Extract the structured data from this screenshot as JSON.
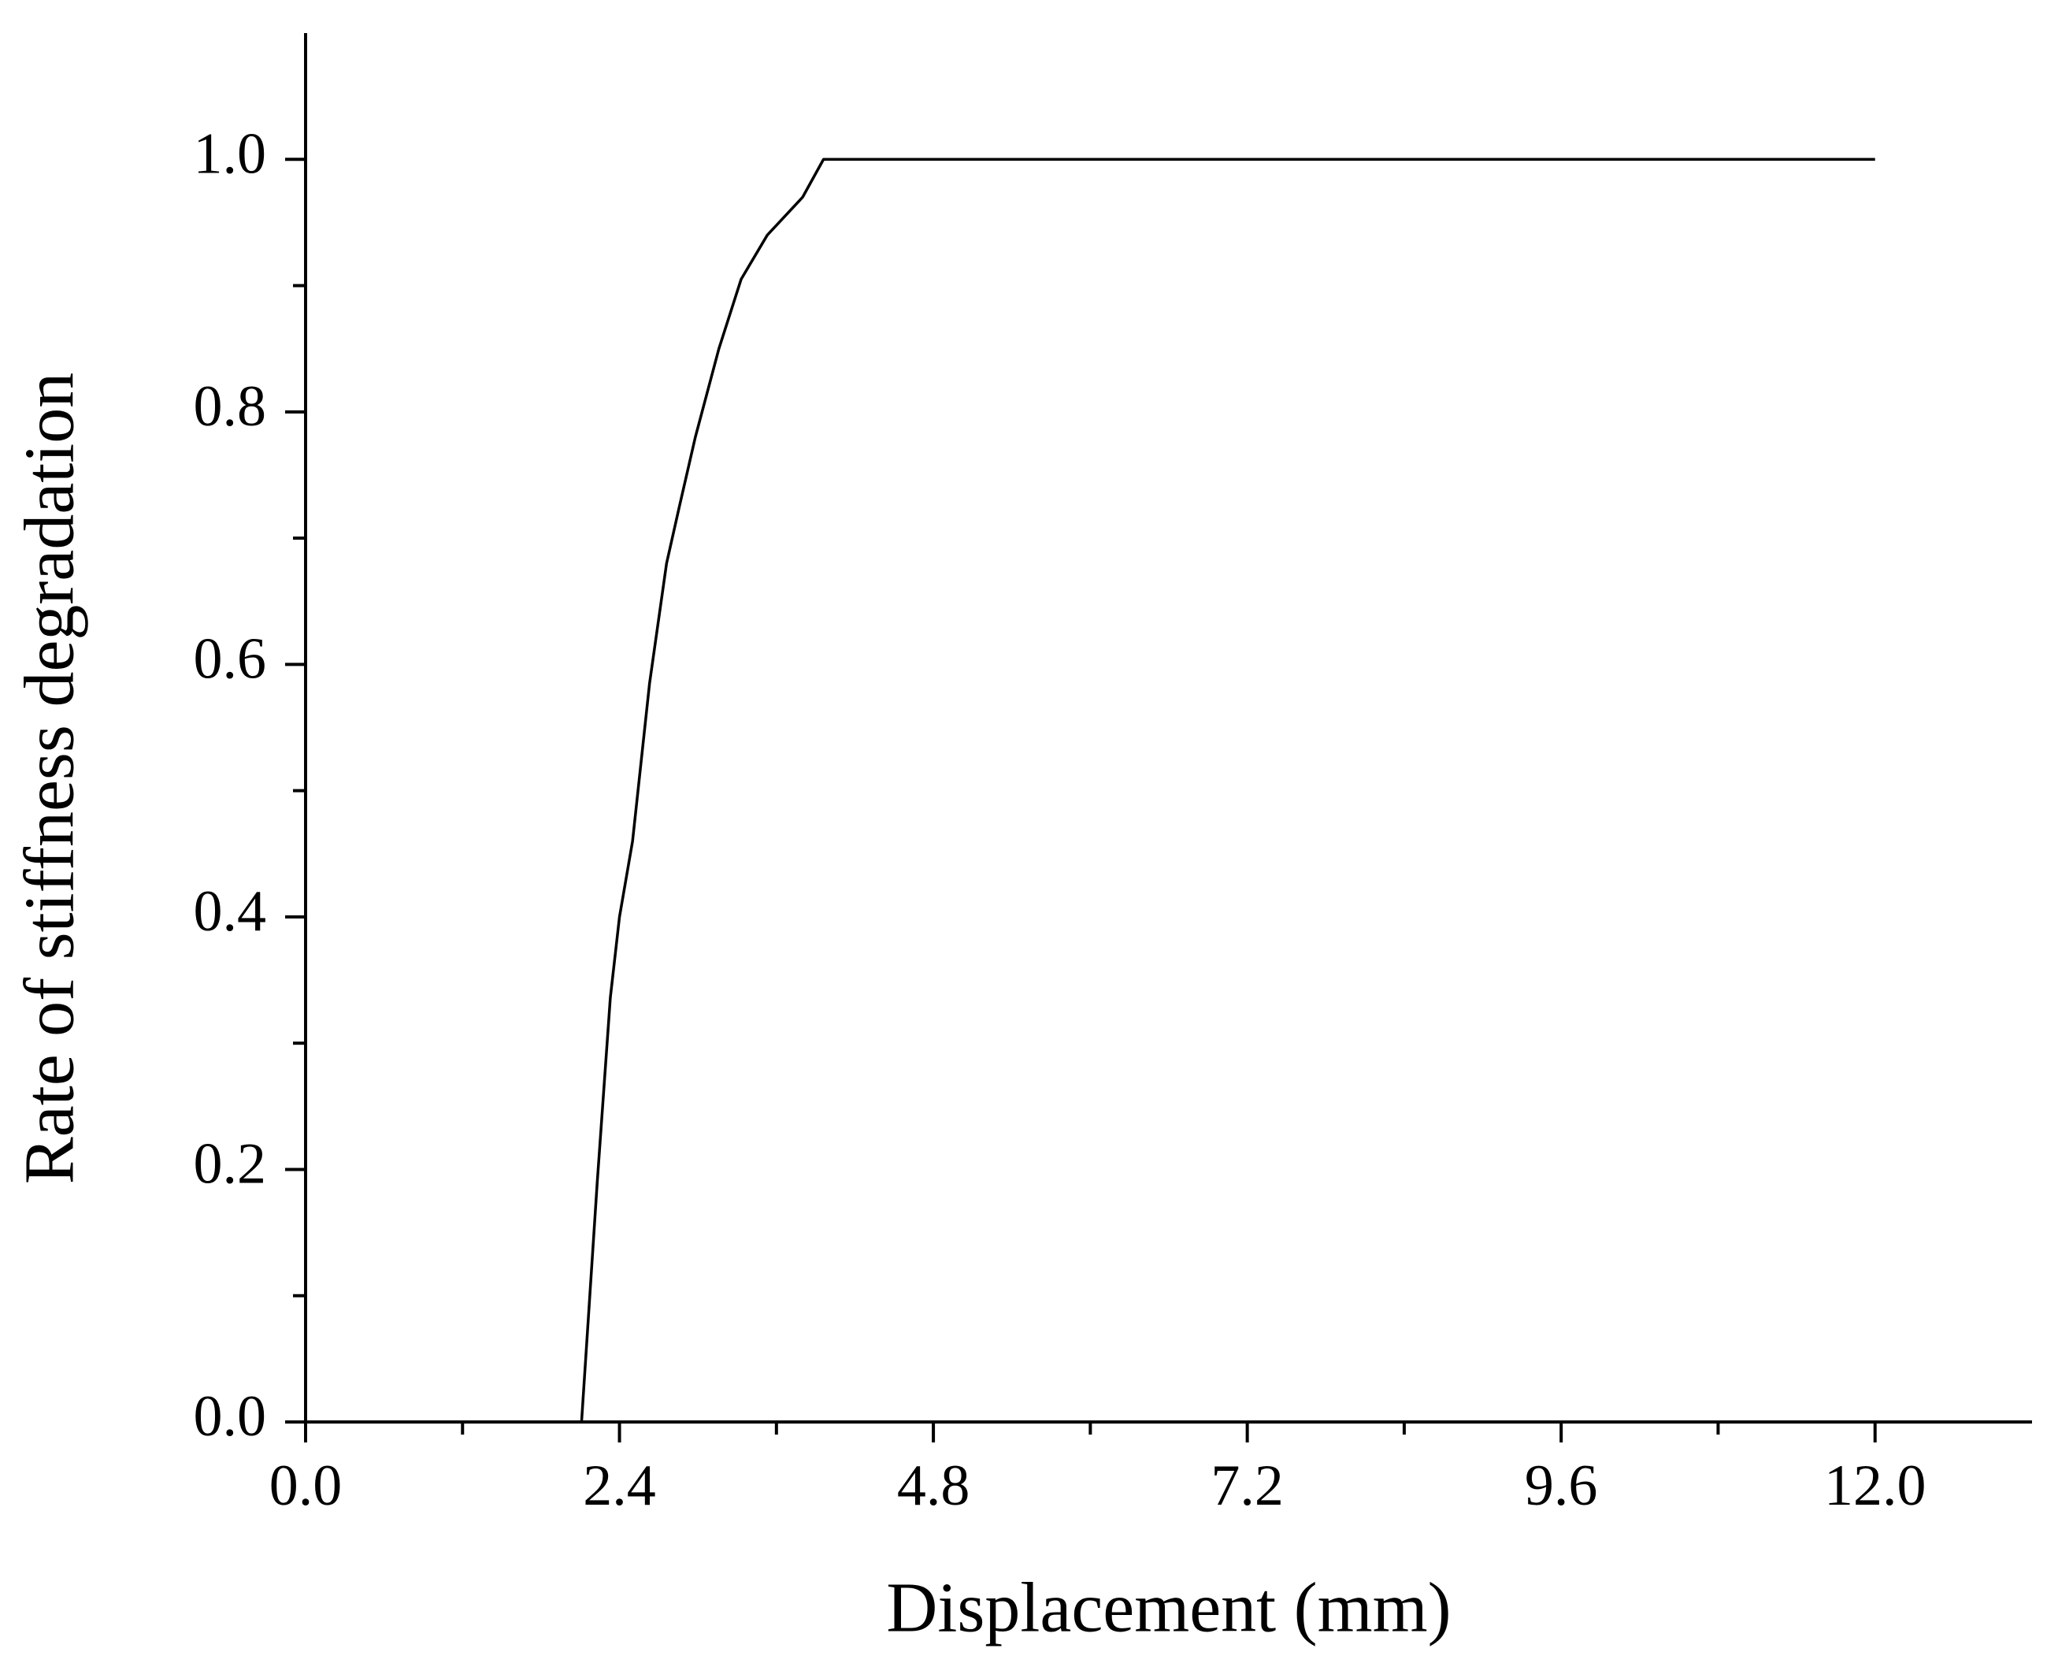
{
  "chart_data": {
    "type": "line",
    "x_label": "Displacement (mm)",
    "y_label": "Rate of stiffness degradation",
    "series": [
      {
        "color": "#000000",
        "x": [
          2.11,
          2.23,
          2.33,
          2.4,
          2.5,
          2.63,
          2.76,
          2.86,
          2.98,
          3.16,
          3.33,
          3.53,
          3.8,
          3.96,
          12.0
        ],
        "values": [
          0,
          0.19,
          0.336,
          0.4,
          0.46,
          0.585,
          0.68,
          0.726,
          0.78,
          0.85,
          0.905,
          0.94,
          0.97,
          1.0,
          1.0
        ]
      }
    ],
    "xlim": [
      0,
      13.2
    ],
    "ylim": [
      0,
      1.1
    ],
    "xticks": [
      {
        "value": 0,
        "label": "0.0"
      },
      2.4,
      4.8,
      7.2,
      9.6,
      {
        "value": 12,
        "label": "12.0"
      }
    ],
    "yticks": [
      {
        "value": 0,
        "label": "0.0"
      },
      0.2,
      0.4,
      0.6,
      0.8,
      {
        "value": 1,
        "label": "1.0"
      }
    ],
    "xminorticks": [
      1.2,
      3.6,
      6.0,
      8.4,
      10.8
    ],
    "yminorticks": [
      0.1,
      0.3,
      0.5,
      0.7,
      0.9
    ],
    "grid": false
  }
}
